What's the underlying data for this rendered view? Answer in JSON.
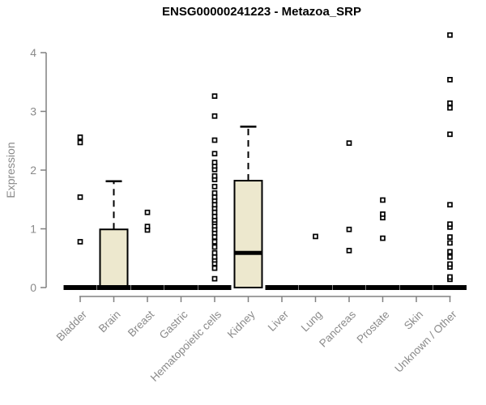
{
  "header": {
    "title": "ENSG00000241223 - Metazoa_SRP"
  },
  "colors": {
    "background": "#ffffff",
    "title": "#000000",
    "axis_line": "#808080",
    "tick_label": "#8a8a8a",
    "box_fill": "#EDE8CE",
    "box_border": "#000000",
    "median": "#000000",
    "outlier_fill": "#ffffff",
    "outlier_border": "#000000"
  },
  "chart_data": {
    "type": "boxplot",
    "title": "ENSG00000241223 - Metazoa_SRP",
    "xlabel": "",
    "ylabel": "Expression",
    "ylim": [
      0,
      4.4
    ],
    "yticks": [
      "0",
      "1",
      "2",
      "3",
      "4"
    ],
    "grid": false,
    "legend": "none",
    "categories": [
      "Bladder",
      "Brain",
      "Breast",
      "Gastric",
      "Hematopoietic cells",
      "Kidney",
      "Liver",
      "Lung",
      "Pancreas",
      "Prostate",
      "Skin",
      "Unknown / Other"
    ],
    "series": [
      {
        "category": "Bladder",
        "q1": 0,
        "median": 0,
        "q3": 0,
        "whisker_low": 0,
        "whisker_high": 0,
        "outliers": [
          0.78,
          1.54,
          2.47,
          2.56
        ]
      },
      {
        "category": "Brain",
        "q1": 0,
        "median": 0,
        "q3": 0.99,
        "whisker_low": 0,
        "whisker_high": 1.81,
        "outliers": []
      },
      {
        "category": "Breast",
        "q1": 0,
        "median": 0,
        "q3": 0,
        "whisker_low": 0,
        "whisker_high": 0,
        "outliers": [
          0.98,
          1.04,
          1.28
        ]
      },
      {
        "category": "Gastric",
        "q1": 0,
        "median": 0,
        "q3": 0,
        "whisker_low": 0,
        "whisker_high": 0,
        "outliers": []
      },
      {
        "category": "Hematopoietic cells",
        "q1": 0,
        "median": 0,
        "q3": 0,
        "whisker_low": 0,
        "whisker_high": 0,
        "outliers": [
          0.15,
          0.33,
          0.41,
          0.47,
          0.52,
          0.59,
          0.69,
          0.78,
          0.86,
          0.93,
          0.99,
          1.05,
          1.11,
          1.15,
          1.21,
          1.28,
          1.35,
          1.41,
          1.48,
          1.54,
          1.61,
          1.72,
          1.84,
          1.9,
          2.01,
          2.07,
          2.13,
          2.28,
          2.51,
          2.92,
          3.26
        ]
      },
      {
        "category": "Kidney",
        "q1": 0,
        "median": 0.59,
        "q3": 1.82,
        "whisker_low": 0,
        "whisker_high": 2.74,
        "outliers": []
      },
      {
        "category": "Liver",
        "q1": 0,
        "median": 0,
        "q3": 0,
        "whisker_low": 0,
        "whisker_high": 0,
        "outliers": []
      },
      {
        "category": "Lung",
        "q1": 0,
        "median": 0,
        "q3": 0,
        "whisker_low": 0,
        "whisker_high": 0,
        "outliers": [
          0.87
        ]
      },
      {
        "category": "Pancreas",
        "q1": 0,
        "median": 0,
        "q3": 0,
        "whisker_low": 0,
        "whisker_high": 0,
        "outliers": [
          0.63,
          0.99,
          2.46
        ]
      },
      {
        "category": "Prostate",
        "q1": 0,
        "median": 0,
        "q3": 0,
        "whisker_low": 0,
        "whisker_high": 0,
        "outliers": [
          0.84,
          1.19,
          1.25,
          1.49
        ]
      },
      {
        "category": "Skin",
        "q1": 0,
        "median": 0,
        "q3": 0,
        "whisker_low": 0,
        "whisker_high": 0,
        "outliers": []
      },
      {
        "category": "Unknown / Other",
        "q1": 0,
        "median": 0,
        "q3": 0,
        "whisker_low": 0,
        "whisker_high": 0,
        "outliers": [
          0.14,
          0.18,
          0.35,
          0.4,
          0.52,
          0.61,
          0.76,
          0.86,
          1.03,
          1.08,
          1.41,
          2.61,
          3.06,
          3.14,
          3.54,
          4.3
        ]
      }
    ]
  }
}
